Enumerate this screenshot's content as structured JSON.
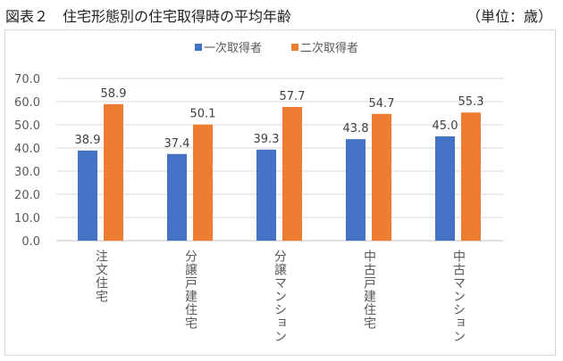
{
  "title": "図表２　住宅形態別の住宅取得時の平均年齢",
  "unit": "（単位：歳）",
  "chart_data": {
    "type": "bar",
    "title": "図表２　住宅形態別の住宅取得時の平均年齢",
    "xlabel": "",
    "ylabel": "",
    "ylim": [
      0,
      70
    ],
    "yticks": [
      "0.0",
      "10.0",
      "20.0",
      "30.0",
      "40.0",
      "50.0",
      "60.0",
      "70.0"
    ],
    "grid": true,
    "legend": "top-center",
    "categories": [
      "注文住宅",
      "分譲戸建住宅",
      "分譲マンション",
      "中古戸建住宅",
      "中古マンション"
    ],
    "series": [
      {
        "name": "一次取得者",
        "color": "#4472c4",
        "values": [
          38.9,
          37.4,
          39.3,
          43.8,
          45.0
        ]
      },
      {
        "name": "二次取得者",
        "color": "#ed7d31",
        "values": [
          58.9,
          50.1,
          57.7,
          54.7,
          55.3
        ]
      }
    ]
  }
}
